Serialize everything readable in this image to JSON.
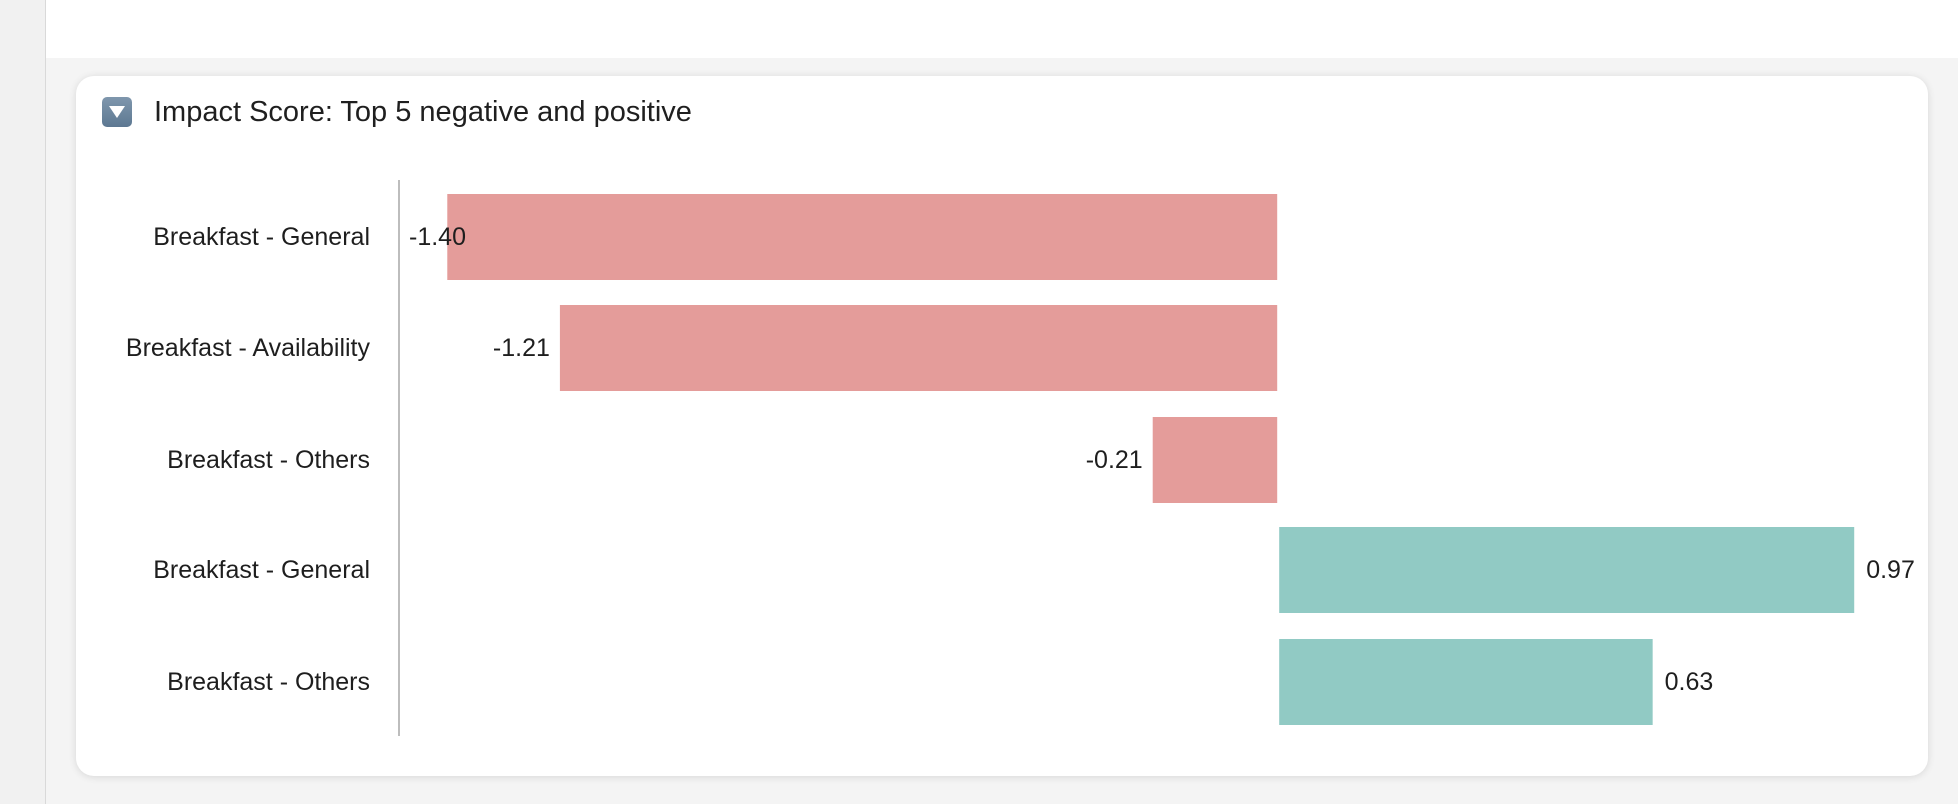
{
  "card": {
    "title": "Impact Score: Top 5 negative and positive",
    "toggle_icon": "triangle-down-icon"
  },
  "colors": {
    "negative": "#e49c9a",
    "positive": "#91cac4",
    "axis": "#bdbdbd"
  },
  "chart_data": {
    "type": "bar",
    "orientation": "horizontal",
    "title": "Impact Score: Top 5 negative and positive",
    "categories": [
      "Breakfast - General",
      "Breakfast - Availability",
      "Breakfast - Others",
      "Breakfast - General",
      "Breakfast - Others"
    ],
    "values": [
      -1.4,
      -1.21,
      -0.21,
      0.97,
      0.63
    ],
    "value_labels": [
      "-1.40",
      "-1.21",
      "-0.21",
      "0.97",
      "0.63"
    ],
    "xlim": [
      -1.5,
      1.0
    ],
    "grid": false,
    "legend": "none"
  }
}
